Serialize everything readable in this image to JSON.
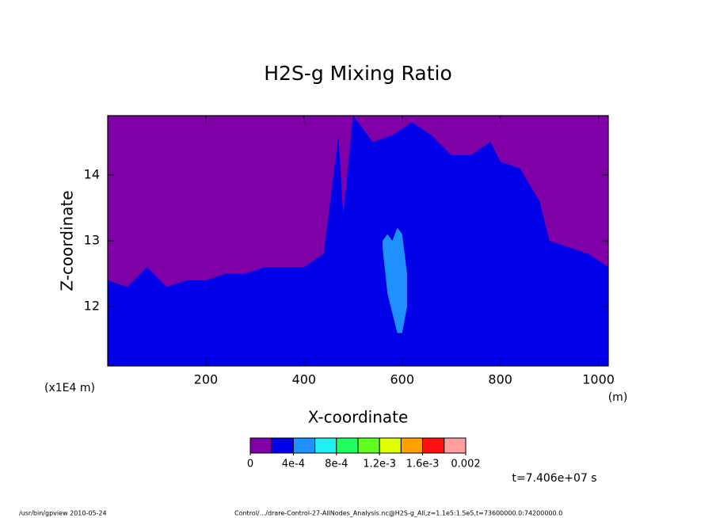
{
  "chart_data": {
    "type": "contour",
    "title": "H2S-g Mixing Ratio",
    "x_label": "X-coordinate",
    "y_label": "Z-coordinate",
    "x_unit": "(m)",
    "y_unit": "(x1E4 m)",
    "xlim": [
      0,
      1020
    ],
    "ylim": [
      11.1,
      14.9
    ],
    "xticks": [
      200,
      400,
      600,
      800,
      1000
    ],
    "yticks": [
      12,
      13,
      14
    ],
    "background_color": "#8000a8",
    "layers": [
      {
        "color": "#0000e8",
        "x": [
          0,
          40,
          80,
          120,
          160,
          200,
          240,
          280,
          320,
          360,
          400,
          440,
          470,
          480,
          500,
          540,
          580,
          620,
          660,
          700,
          740,
          780,
          800,
          840,
          880,
          900,
          940,
          980,
          1020
        ],
        "top": [
          12.4,
          12.3,
          12.6,
          12.3,
          12.4,
          12.4,
          12.5,
          12.5,
          12.6,
          12.6,
          12.6,
          12.8,
          14.6,
          13.4,
          14.9,
          14.5,
          14.6,
          14.8,
          14.6,
          14.3,
          14.3,
          14.5,
          14.2,
          14.1,
          13.6,
          13.0,
          12.9,
          12.8,
          12.6
        ],
        "bottom": [
          11.1,
          11.1,
          11.1,
          11.1,
          11.1,
          11.1,
          11.1,
          11.1,
          11.1,
          11.1,
          11.1,
          11.1,
          11.1,
          11.1,
          11.1,
          11.1,
          11.1,
          11.1,
          11.1,
          11.1,
          11.1,
          11.1,
          11.1,
          11.1,
          11.1,
          11.1,
          11.1,
          11.1,
          11.1
        ]
      },
      {
        "color": "#1e90ff",
        "x": [
          560,
          570,
          580,
          590,
          600,
          610
        ],
        "top": [
          13.0,
          13.1,
          13.0,
          13.2,
          13.1,
          12.5
        ],
        "bottom": [
          12.9,
          12.2,
          11.9,
          11.6,
          11.6,
          12.0
        ]
      }
    ],
    "colorbar_colors": [
      "#8000a8",
      "#0000e8",
      "#1e90ff",
      "#20f0f0",
      "#20ff60",
      "#60ff20",
      "#e0ff00",
      "#ffa000",
      "#ff1010",
      "#ff9e9e"
    ],
    "colorbar_lim": [
      0,
      0.002
    ],
    "colorbar_ticks": [
      0,
      {
        "value": 0.0004,
        "label": "4e-4"
      },
      {
        "value": 0.0008,
        "label": "8e-4"
      },
      {
        "value": 0.0012,
        "label": "1.2e-3"
      },
      {
        "value": 0.0016,
        "label": "1.6e-3"
      },
      0.002
    ],
    "time_label": "t=7.406e+07 s",
    "footer_left": "/usr/bin/gpview   2010-05-24",
    "footer_right": "Control/.../drare-Control-27-AllNodes_Analysis.nc@H2S-g_All,z=1.1e5:1.5e5,t=73600000.0:74200000.0"
  }
}
